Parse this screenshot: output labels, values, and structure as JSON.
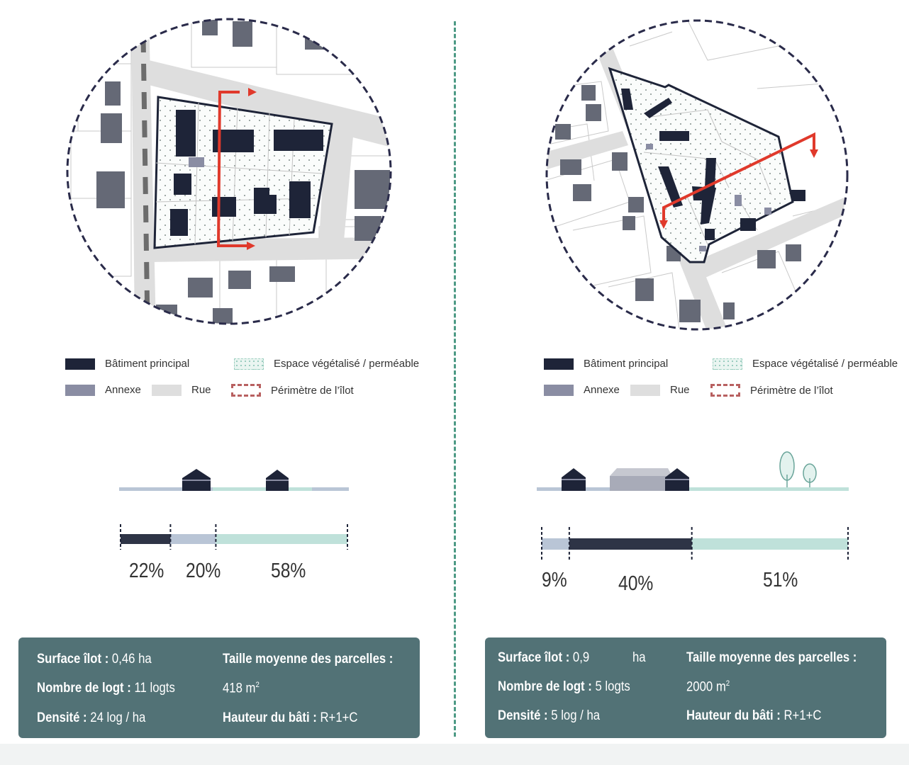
{
  "legend": {
    "main_building": "Bâtiment principal",
    "annex": "Annexe",
    "street": "Rue",
    "green_space": "Espace végétalisé / perméable",
    "perimeter": "Périmètre de l’îlot"
  },
  "colors": {
    "main_building": "#1e2438",
    "annex": "#8a8da3",
    "street": "#dedede",
    "green_space": "#9ccfc0",
    "perimeter": "#2a2b4a",
    "section_arrow": "#e0392b",
    "stats_bg": "#527276",
    "divider": "#4d9a85"
  },
  "left": {
    "bar_percentages": [
      "22%",
      "20%",
      "58%"
    ],
    "bar_values": [
      22,
      20,
      58
    ],
    "stats": {
      "surface_label": "Surface îlot :",
      "surface_value": "0,46 ha",
      "logt_label": "Nombre de logt :",
      "logt_value": "11 logts",
      "densite_label": "Densité :",
      "densite_value": "24 log / ha",
      "taille_label": "Taille moyenne des parcelles :",
      "taille_value": "418 m",
      "taille_unit_sup": "2",
      "hauteur_label": "Hauteur du bâti :",
      "hauteur_value": "R+1+C"
    }
  },
  "right": {
    "bar_percentages": [
      "9%",
      "40%",
      "51%"
    ],
    "bar_values": [
      9,
      40,
      51
    ],
    "stats": {
      "surface_label": "Surface îlot :",
      "surface_value": "0,9",
      "surface_unit": "ha",
      "logt_label": "Nombre de logt :",
      "logt_value": "5 logts",
      "densite_label": "Densité :",
      "densite_value": "5 log / ha",
      "taille_label": "Taille moyenne des parcelles :",
      "taille_value": "2000 m",
      "taille_unit_sup": "2",
      "hauteur_label": "Hauteur du bâti :",
      "hauteur_value": "R+1+C"
    }
  }
}
